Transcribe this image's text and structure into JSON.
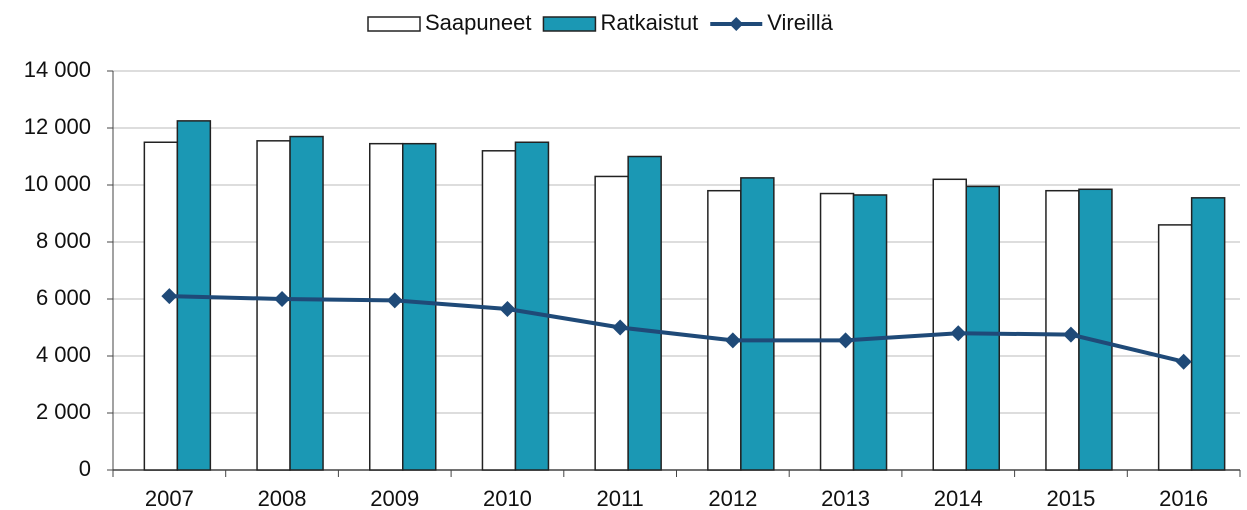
{
  "chart_data": {
    "type": "bar",
    "categories": [
      "2007",
      "2008",
      "2009",
      "2010",
      "2011",
      "2012",
      "2013",
      "2014",
      "2015",
      "2016"
    ],
    "series": [
      {
        "name": "Saapuneet",
        "type": "bar",
        "color": "#ffffff",
        "values": [
          11500,
          11550,
          11450,
          11200,
          10300,
          9800,
          9700,
          10200,
          9800,
          8600
        ]
      },
      {
        "name": "Ratkaistut",
        "type": "bar",
        "color": "#1b98b4",
        "values": [
          12250,
          11700,
          11450,
          11500,
          11000,
          10250,
          9650,
          9950,
          9850,
          9550
        ]
      },
      {
        "name": "Vireillä",
        "type": "line",
        "color": "#1f4a78",
        "values": [
          6100,
          6000,
          5950,
          5650,
          5000,
          4550,
          4550,
          4800,
          4750,
          3800
        ]
      }
    ],
    "ylim": [
      0,
      14000
    ],
    "yticks": [
      0,
      {
        "value": 2000,
        "label": "2 000"
      },
      {
        "value": 4000,
        "label": "4 000"
      },
      {
        "value": 6000,
        "label": "6 000"
      },
      {
        "value": 8000,
        "label": "8 000"
      },
      {
        "value": 10000,
        "label": "10 000"
      },
      {
        "value": 12000,
        "label": "12 000"
      },
      {
        "value": 14000,
        "label": "14 000"
      }
    ],
    "grid": true,
    "legend": "top"
  }
}
